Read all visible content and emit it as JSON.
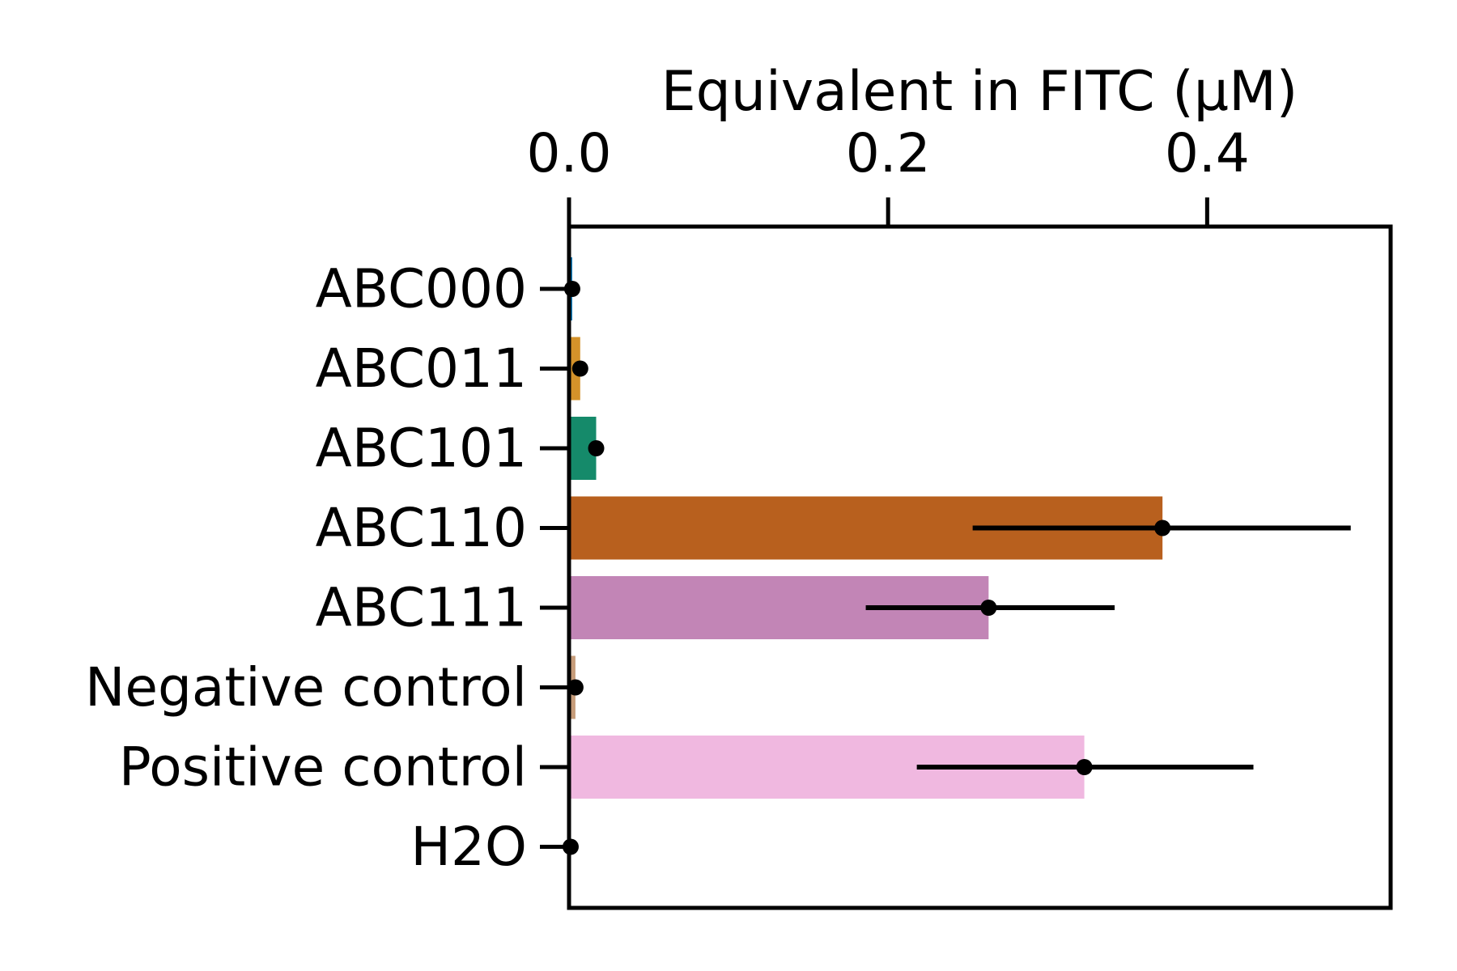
{
  "chart_data": {
    "type": "bar",
    "orientation": "horizontal",
    "xlabel": "Equivalent in FITC (µM)",
    "xaxis_position": "top",
    "xlim": [
      0.0,
      0.515
    ],
    "xticks": [
      0.0,
      0.2,
      0.4
    ],
    "xtick_labels": [
      "0.0",
      "0.2",
      "0.4"
    ],
    "categories": [
      "ABC000",
      "ABC011",
      "ABC101",
      "ABC110",
      "ABC111",
      "Negative control",
      "Positive control",
      "H2O"
    ],
    "values": [
      0.002,
      0.007,
      0.017,
      0.372,
      0.263,
      0.004,
      0.323,
      0.001
    ],
    "error_low": [
      0.002,
      0.007,
      0.017,
      0.253,
      0.186,
      0.004,
      0.218,
      0.001
    ],
    "error_high": [
      0.002,
      0.007,
      0.017,
      0.49,
      0.342,
      0.004,
      0.429,
      0.001
    ],
    "colors": [
      "#0072b2",
      "#d4922a",
      "#158a6a",
      "#b8601e",
      "#c285b6",
      "#c69c7a",
      "#f0b8e0",
      "#7f7f7f"
    ],
    "grid": false,
    "legend": "none"
  }
}
